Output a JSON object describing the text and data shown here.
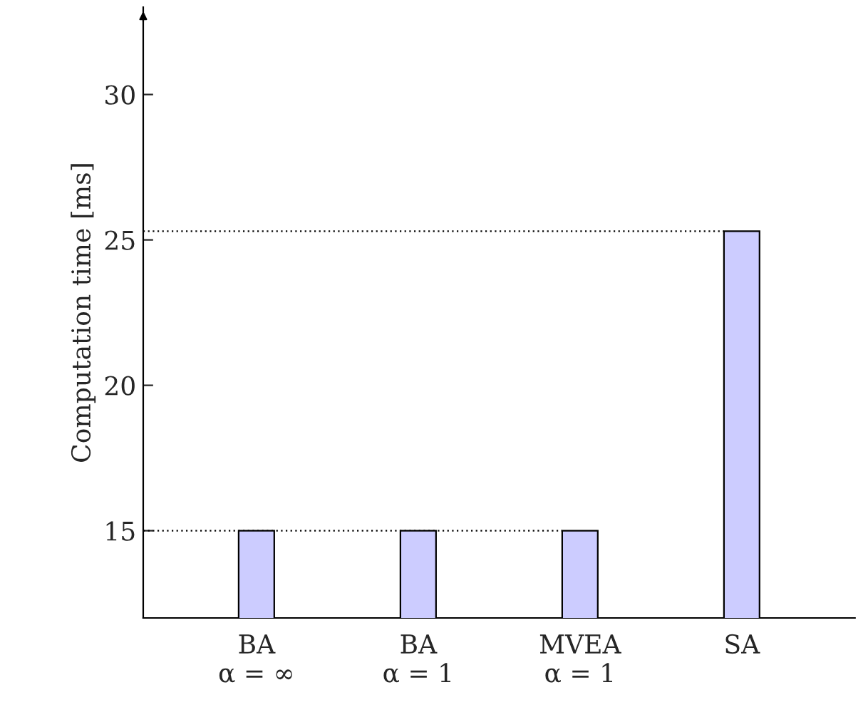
{
  "chart_data": {
    "type": "bar",
    "ylabel": "Computation time [ms]",
    "categories": [
      "BA\nα = ∞",
      "BA\nα = 1",
      "MVEA\nα = 1",
      "SA"
    ],
    "values": [
      15.0,
      15.0,
      15.0,
      25.3
    ],
    "color": "#ccccff",
    "ylim": [
      12,
      33
    ],
    "yticks": [
      15,
      20,
      25,
      30
    ],
    "grid": false,
    "ref_lines": [
      {
        "axis": "y",
        "value": 15.0,
        "line_style": "dotted",
        "color": "#000000"
      },
      {
        "axis": "y",
        "value": 25.3,
        "line_style": "dotted",
        "color": "#000000"
      }
    ]
  }
}
